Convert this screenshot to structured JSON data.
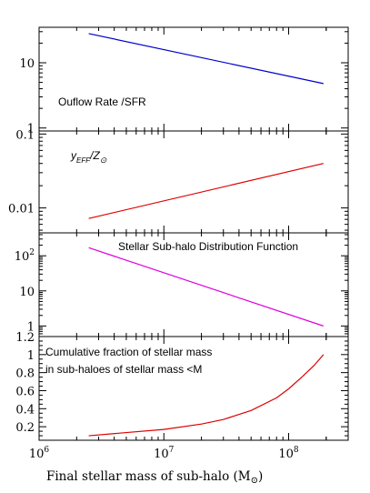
{
  "figure": {
    "xlabel": "Final stellar mass of sub-halo (M",
    "xlabel_suffix": ")",
    "xlabel_symbol": "⊙"
  },
  "chart_data": [
    {
      "type": "line",
      "label": "Ouflow Rate /SFR",
      "xscale": "log",
      "yscale": "log",
      "xlim": [
        1000000,
        300000000
      ],
      "ylim": [
        0.9,
        35
      ],
      "yticks": [
        {
          "v": 1,
          "t": "1"
        },
        {
          "v": 10,
          "t": "10"
        }
      ],
      "series": [
        {
          "color": "#0000cc",
          "x": [
            2500000,
            190000000
          ],
          "y": [
            28,
            4.8
          ]
        }
      ]
    },
    {
      "type": "line",
      "label_main": "y",
      "label_sub": "EFF",
      "label_mid": "/Z",
      "label_sub2": "⊙",
      "xscale": "log",
      "yscale": "log",
      "xlim": [
        1000000,
        300000000
      ],
      "ylim": [
        0.0046,
        0.11
      ],
      "yticks": [
        {
          "v": 0.01,
          "t": "0.01"
        },
        {
          "v": 0.1,
          "t": "0.1"
        }
      ],
      "series": [
        {
          "color": "#dd0000",
          "x": [
            2500000,
            190000000
          ],
          "y": [
            0.0072,
            0.04
          ]
        }
      ]
    },
    {
      "type": "line",
      "label": "Stellar Sub-halo Distribution Function",
      "xscale": "log",
      "yscale": "log",
      "xlim": [
        1000000,
        300000000
      ],
      "ylim": [
        0.5,
        450
      ],
      "yticks": [
        {
          "v": 1,
          "t": "1"
        },
        {
          "v": 10,
          "t": "10"
        },
        {
          "v": 100,
          "t": "10",
          "sup": "2"
        }
      ],
      "series": [
        {
          "color": "#dd00dd",
          "x": [
            2500000,
            190000000
          ],
          "y": [
            170,
            1.0
          ]
        }
      ]
    },
    {
      "type": "line",
      "label_lines": [
        "Cumulative fraction of stellar  mass",
        "in sub-haloes of stellar mass <M"
      ],
      "xscale": "log",
      "yscale": "linear",
      "xlim": [
        1000000,
        300000000
      ],
      "ylim": [
        0.05,
        1.2
      ],
      "yticks": [
        {
          "v": 0.2,
          "t": "0.2"
        },
        {
          "v": 0.4,
          "t": "0.4"
        },
        {
          "v": 0.6,
          "t": "0.6"
        },
        {
          "v": 0.8,
          "t": "0.8"
        },
        {
          "v": 1.0,
          "t": "1"
        },
        {
          "v": 1.2,
          "t": "1.2"
        }
      ],
      "xticks": [
        {
          "exp": "6"
        },
        {
          "exp": "7"
        },
        {
          "exp": "8"
        }
      ],
      "series": [
        {
          "color": "#dd0000",
          "x": [
            2500000,
            5000000,
            10000000,
            20000000,
            30000000,
            50000000,
            80000000,
            100000000,
            130000000,
            160000000,
            190000000
          ],
          "y": [
            0.1,
            0.135,
            0.17,
            0.23,
            0.28,
            0.38,
            0.52,
            0.62,
            0.76,
            0.88,
            1.0
          ]
        }
      ]
    }
  ]
}
